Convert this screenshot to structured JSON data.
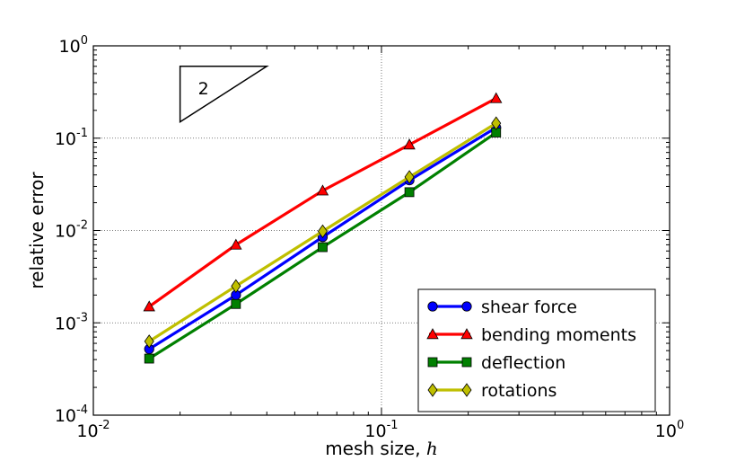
{
  "chart_data": {
    "type": "line",
    "xscale": "log",
    "yscale": "log",
    "xlim": [
      0.01,
      1
    ],
    "ylim": [
      0.0001,
      1
    ],
    "xlabel": "mesh size, ",
    "xlabel_var": "h",
    "ylabel": "relative error",
    "x_ticks": [
      {
        "value": 0.01,
        "base": "10",
        "exp": "-2"
      },
      {
        "value": 0.1,
        "base": "10",
        "exp": "-1"
      },
      {
        "value": 1,
        "base": "10",
        "exp": "0"
      }
    ],
    "y_ticks": [
      {
        "value": 0.0001,
        "base": "10",
        "exp": "-4"
      },
      {
        "value": 0.001,
        "base": "10",
        "exp": "-3"
      },
      {
        "value": 0.01,
        "base": "10",
        "exp": "-2"
      },
      {
        "value": 0.1,
        "base": "10",
        "exp": "-1"
      },
      {
        "value": 1,
        "base": "10",
        "exp": "0"
      }
    ],
    "grid": true,
    "legend_position": "lower-right",
    "x": [
      0.015625,
      0.03125,
      0.0625,
      0.125,
      0.25
    ],
    "series": [
      {
        "name": "shear force",
        "color": "#0000ff",
        "marker": "circle",
        "values": [
          0.00052,
          0.002,
          0.0085,
          0.035,
          0.13
        ]
      },
      {
        "name": "bending moments",
        "color": "#ff0000",
        "marker": "triangle",
        "values": [
          0.0015,
          0.007,
          0.027,
          0.085,
          0.27
        ]
      },
      {
        "name": "deflection",
        "color": "#008000",
        "marker": "square",
        "values": [
          0.00041,
          0.0016,
          0.0066,
          0.026,
          0.115
        ]
      },
      {
        "name": "rotations",
        "color": "#bfbf00",
        "marker": "diamond",
        "values": [
          0.00063,
          0.0025,
          0.0098,
          0.038,
          0.145
        ]
      }
    ],
    "slope_annotation": {
      "label": "2",
      "x": [
        0.02,
        0.04
      ],
      "y": [
        0.15,
        0.6
      ]
    }
  }
}
